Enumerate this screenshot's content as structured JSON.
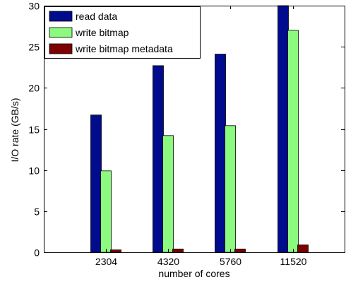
{
  "chart_data": {
    "type": "bar",
    "title": "",
    "xlabel": "number of cores",
    "ylabel": "I/O rate (GB/s)",
    "categories": [
      "2304",
      "4320",
      "5760",
      "11520"
    ],
    "ylim": [
      0,
      30
    ],
    "yticks": [
      0,
      5,
      10,
      15,
      20,
      25,
      30
    ],
    "grid": false,
    "legend_position": "top-left",
    "series": [
      {
        "name": "read data",
        "color": "#000b8e",
        "values": [
          16.7,
          22.7,
          24.1,
          30.0
        ]
      },
      {
        "name": "write bitmap",
        "color": "#8cfa7e",
        "values": [
          9.9,
          14.2,
          15.4,
          27.0
        ]
      },
      {
        "name": "write bitmap metadata",
        "color": "#7e0000",
        "values": [
          0.3,
          0.4,
          0.4,
          0.9
        ]
      }
    ]
  }
}
